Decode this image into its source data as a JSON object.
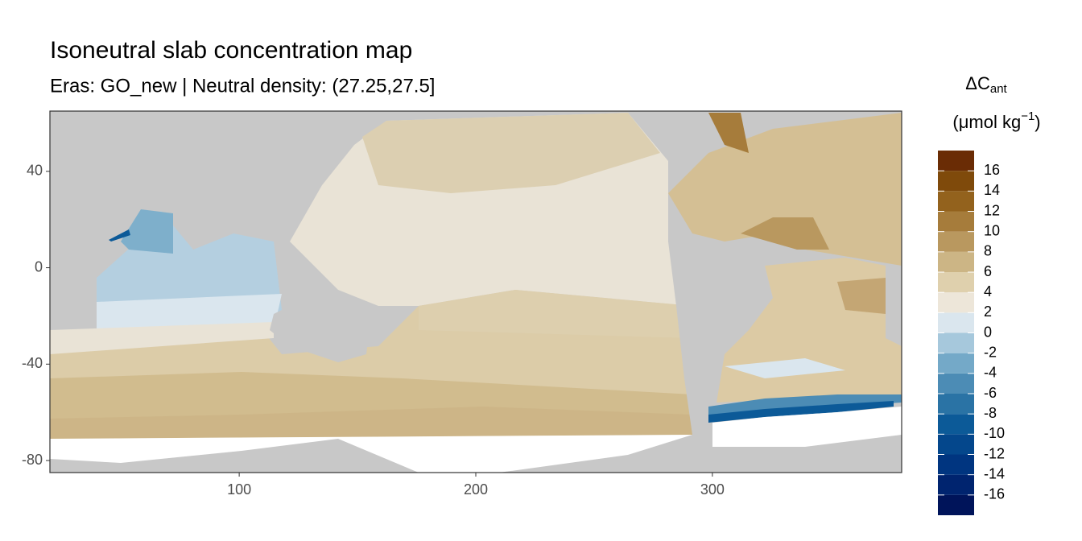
{
  "chart_data": {
    "type": "map",
    "title": "Isoneutral slab concentration map",
    "subtitle": "Eras: GO_new | Neutral density: (27.25,27.5]",
    "xlim": [
      20,
      380
    ],
    "ylim": [
      -85,
      65
    ],
    "xticks": [
      100,
      200,
      300
    ],
    "yticks": [
      40,
      0,
      -40,
      -80
    ],
    "legend": {
      "title": [
        "ΔC",
        "ant"
      ],
      "unit": [
        "(μmol kg",
        "−1",
        ")"
      ],
      "breaks": [
        -18,
        -16,
        -14,
        -12,
        -10,
        -8,
        -6,
        -4,
        -2,
        0,
        2,
        4,
        6,
        8,
        10,
        12,
        14,
        16,
        18
      ],
      "colors": [
        "#00145a",
        "#00246f",
        "#003580",
        "#04478c",
        "#0c5a98",
        "#2a73a5",
        "#4c8cb5",
        "#74a9c8",
        "#a6c8dc",
        "#dae6ee",
        "#ede6d9",
        "#dfd0ad",
        "#ccb585",
        "#b9985f",
        "#a67c3b",
        "#93621d",
        "#7f4a0b",
        "#6a2c05"
      ],
      "ticks": [
        -16,
        -14,
        -12,
        -10,
        -8,
        -6,
        -4,
        -2,
        0,
        2,
        4,
        6,
        8,
        10,
        12,
        14,
        16
      ]
    }
  }
}
